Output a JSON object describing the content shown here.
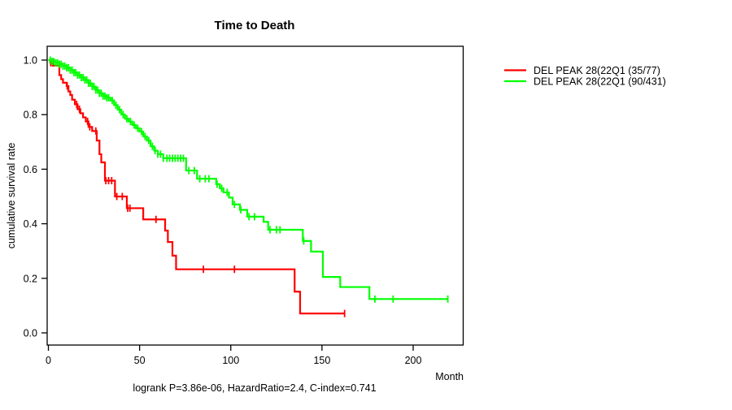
{
  "figure": {
    "title": "Time to Death",
    "footer_annotation": "logrank P=3.86e-06, HazardRatio=2.4, C-index=0.741"
  },
  "chart_data": {
    "type": "line",
    "subtype": "kaplan-meier-step",
    "title": "Time to Death",
    "xlabel": "Month",
    "ylabel": "cumulative survival rate",
    "xlim": [
      0,
      228
    ],
    "ylim": [
      0,
      1
    ],
    "xticks": [
      0,
      50,
      100,
      150,
      200
    ],
    "yticks": [
      0.0,
      0.2,
      0.4,
      0.6,
      0.8,
      1.0
    ],
    "grid": false,
    "legend_position": "right-outside",
    "annotation": "logrank P=3.86e-06, HazardRatio=2.4, C-index=0.741",
    "axis_color": "#000000",
    "series": [
      {
        "name": "DEL PEAK 28(22Q1 (35/77)",
        "color": "#ff0000",
        "steps": [
          [
            0,
            1.0
          ],
          [
            1,
            0.99
          ],
          [
            2.5,
            0.98
          ],
          [
            6,
            0.945
          ],
          [
            7,
            0.93
          ],
          [
            8,
            0.917
          ],
          [
            10,
            0.905
          ],
          [
            11,
            0.885
          ],
          [
            12,
            0.872
          ],
          [
            13,
            0.855
          ],
          [
            14.5,
            0.838
          ],
          [
            16,
            0.82
          ],
          [
            17.5,
            0.805
          ],
          [
            19,
            0.79
          ],
          [
            20.5,
            0.775
          ],
          [
            22,
            0.755
          ],
          [
            24,
            0.74
          ],
          [
            26.5,
            0.705
          ],
          [
            28,
            0.655
          ],
          [
            29,
            0.625
          ],
          [
            31,
            0.558
          ],
          [
            36.5,
            0.5
          ],
          [
            43,
            0.457
          ],
          [
            52,
            0.416
          ],
          [
            64,
            0.375
          ],
          [
            65.5,
            0.333
          ],
          [
            68,
            0.283
          ],
          [
            70,
            0.233
          ],
          [
            135,
            0.151
          ],
          [
            138,
            0.071
          ]
        ],
        "end_month": 162.4,
        "censor_marks": [
          1.3,
          2.3,
          10.3,
          15.5,
          17,
          21.5,
          22.7,
          26,
          31.5,
          33,
          34.7,
          37.5,
          40.5,
          43.5,
          44.7,
          59,
          85,
          102,
          162.4
        ]
      },
      {
        "name": "DEL PEAK 28(22Q1 (90/431)",
        "color": "#00ff00",
        "steps": [
          [
            0,
            1.0
          ],
          [
            2,
            0.995
          ],
          [
            4,
            0.99
          ],
          [
            6,
            0.985
          ],
          [
            8,
            0.978
          ],
          [
            10,
            0.972
          ],
          [
            12,
            0.963
          ],
          [
            14,
            0.954
          ],
          [
            16,
            0.945
          ],
          [
            18,
            0.936
          ],
          [
            20,
            0.927
          ],
          [
            22,
            0.915
          ],
          [
            24,
            0.903
          ],
          [
            26,
            0.89
          ],
          [
            28,
            0.878
          ],
          [
            30,
            0.868
          ],
          [
            32,
            0.862
          ],
          [
            34,
            0.852
          ],
          [
            36,
            0.835
          ],
          [
            38,
            0.818
          ],
          [
            40,
            0.8
          ],
          [
            42,
            0.785
          ],
          [
            44,
            0.775
          ],
          [
            46,
            0.762
          ],
          [
            48,
            0.75
          ],
          [
            50,
            0.738
          ],
          [
            52,
            0.72
          ],
          [
            54,
            0.705
          ],
          [
            56,
            0.684
          ],
          [
            58,
            0.668
          ],
          [
            60,
            0.655
          ],
          [
            63,
            0.64
          ],
          [
            75.5,
            0.595
          ],
          [
            81.5,
            0.565
          ],
          [
            92,
            0.545
          ],
          [
            94,
            0.53
          ],
          [
            96,
            0.515
          ],
          [
            99,
            0.496
          ],
          [
            101,
            0.471
          ],
          [
            105,
            0.451
          ],
          [
            109,
            0.426
          ],
          [
            118,
            0.407
          ],
          [
            120.5,
            0.378
          ],
          [
            139.5,
            0.337
          ],
          [
            144,
            0.298
          ],
          [
            150.5,
            0.205
          ],
          [
            160,
            0.168
          ],
          [
            176,
            0.124
          ]
        ],
        "end_month": 219,
        "censor_marks": [
          1,
          2,
          3,
          4,
          5,
          6,
          7,
          8,
          9,
          10,
          11,
          12,
          13,
          14,
          15,
          16,
          17,
          18,
          19,
          20,
          21,
          22,
          23,
          24,
          25,
          26,
          27,
          28,
          29,
          30,
          31,
          32,
          33,
          35,
          37,
          39,
          41,
          43,
          45,
          47,
          49,
          51,
          53,
          55,
          57,
          58.5,
          60,
          61.5,
          63,
          65,
          66.5,
          68,
          69.5,
          71,
          72.5,
          74,
          77,
          80,
          83,
          86,
          88,
          92.5,
          95,
          98,
          102,
          105.5,
          110,
          113,
          121.5,
          125,
          127,
          140,
          179,
          189,
          219
        ]
      }
    ]
  }
}
